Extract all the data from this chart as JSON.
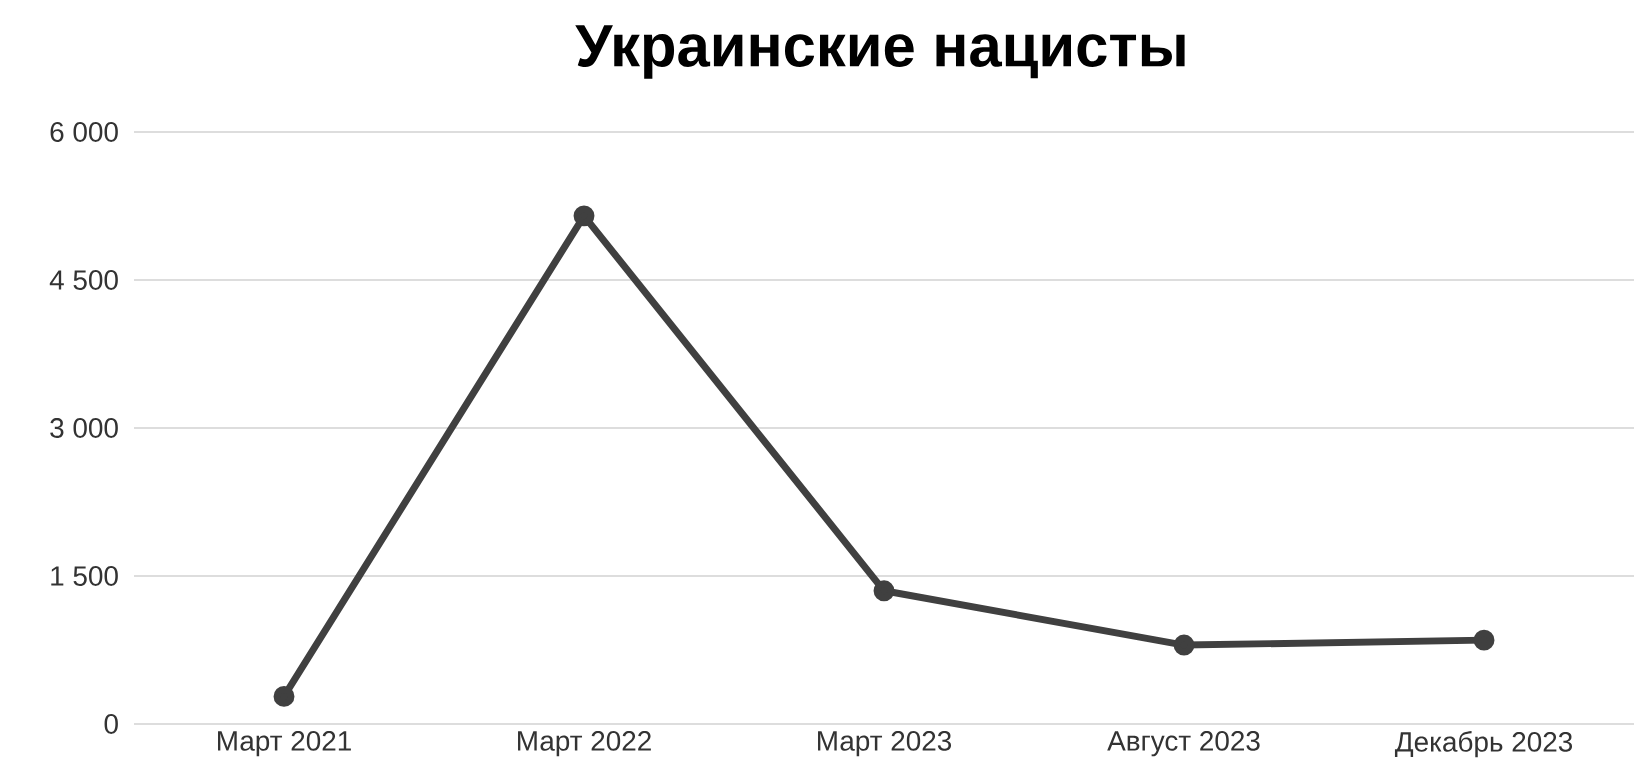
{
  "chart_data": {
    "type": "line",
    "title": "**Украинские нацисты**",
    "categories": [
      "Март 2021",
      "Март 2022",
      "Март 2023",
      "Август 2023",
      "Декабрь 2023"
    ],
    "series": [
      {
        "color": "#404040",
        "values": [
          280,
          5150,
          1350,
          800,
          850
        ]
      }
    ],
    "ylim": [
      0,
      6000
    ],
    "yticks": [
      {
        "value": 0,
        "label": "0"
      },
      {
        "value": 1500,
        "label": "1 500"
      },
      {
        "value": 3000,
        "label": "3 000"
      },
      {
        "value": 4500,
        "label": "4 500"
      },
      {
        "value": 6000,
        "label": "6 000"
      }
    ],
    "grid": "y",
    "marker": "circle",
    "line_style": "solid"
  }
}
